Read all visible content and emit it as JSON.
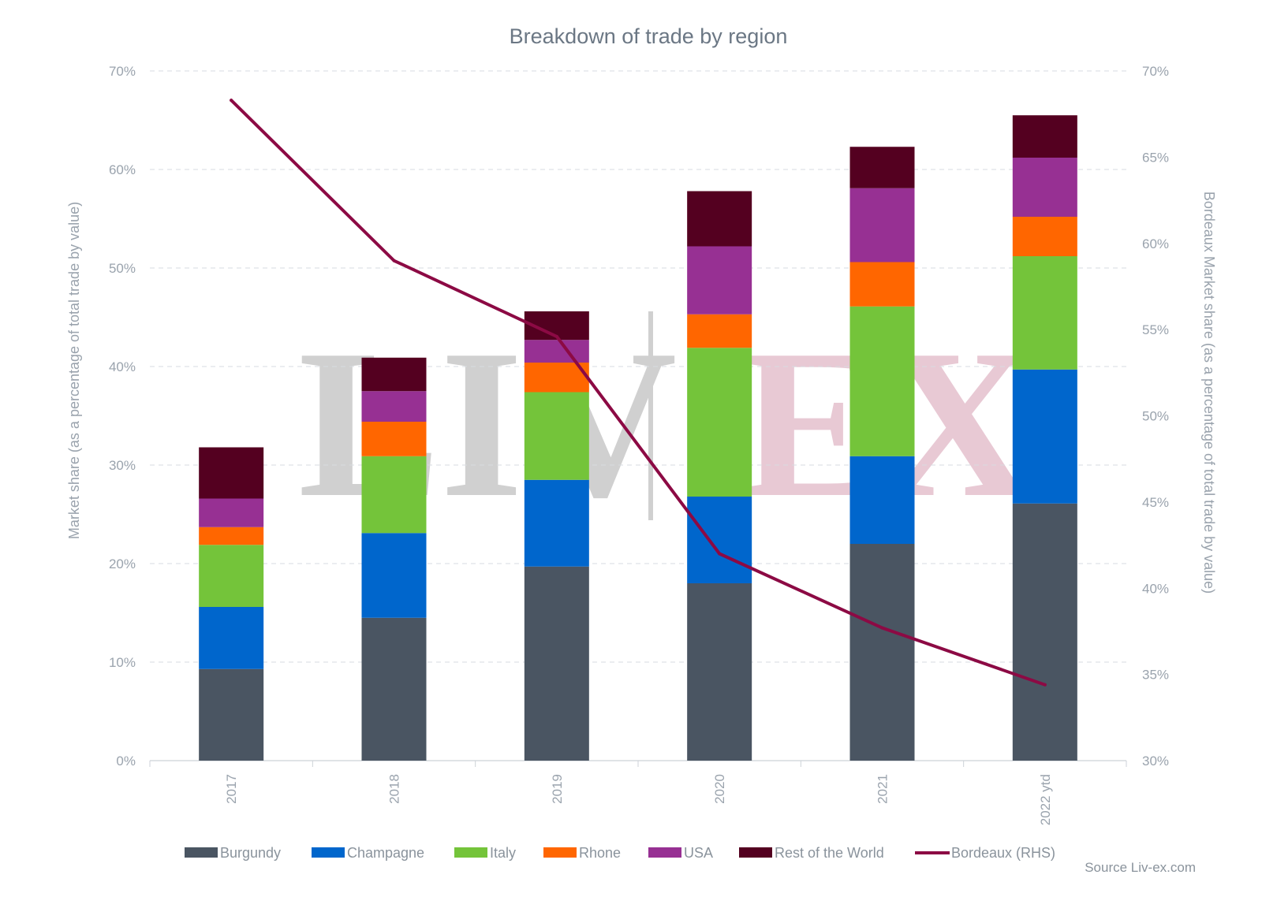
{
  "chart_data": {
    "type": "bar",
    "stacked": true,
    "title": "Breakdown of trade by region",
    "categories": [
      "2017",
      "2018",
      "2019",
      "2020",
      "2021",
      "2022 ytd"
    ],
    "ylabel": "Market share (as a percentage of total trade by value)",
    "y2label": "Bordeaux Market share (as a percentage of total trade by value)",
    "ylim": [
      0,
      70
    ],
    "y2lim": [
      30,
      70
    ],
    "yticks": [
      "0%",
      "10%",
      "20%",
      "30%",
      "40%",
      "50%",
      "60%",
      "70%"
    ],
    "y2ticks": [
      "30%",
      "35%",
      "40%",
      "45%",
      "50%",
      "55%",
      "60%",
      "65%",
      "70%"
    ],
    "y2tick_values": [
      30,
      35,
      40,
      45,
      50,
      55,
      60,
      65,
      70
    ],
    "grid": true,
    "legend_position": "bottom",
    "series": [
      {
        "name": "Burgundy",
        "color": "#4a5562",
        "values": [
          9.3,
          14.5,
          19.7,
          18.0,
          22.0,
          26.1
        ]
      },
      {
        "name": "Champagne",
        "color": "#0066cc",
        "values": [
          6.3,
          8.6,
          8.8,
          8.8,
          8.9,
          13.6
        ]
      },
      {
        "name": "Italy",
        "color": "#74c43a",
        "values": [
          6.3,
          7.8,
          8.9,
          15.1,
          15.2,
          11.5
        ]
      },
      {
        "name": "Rhone",
        "color": "#ff6600",
        "values": [
          1.8,
          3.5,
          3.0,
          3.4,
          4.5,
          4.0
        ]
      },
      {
        "name": "USA",
        "color": "#973093",
        "values": [
          2.9,
          3.1,
          2.3,
          6.9,
          7.5,
          6.0
        ]
      },
      {
        "name": "Rest of the World",
        "color": "#540020",
        "values": [
          5.2,
          3.4,
          2.9,
          5.6,
          4.2,
          4.3
        ]
      }
    ],
    "line_series": {
      "name": "Bordeaux (RHS)",
      "color": "#8c0a44",
      "axis": "right",
      "values": [
        68.3,
        59.0,
        54.6,
        42.0,
        37.7,
        34.4
      ]
    },
    "watermark": {
      "left": "LIV",
      "right": "EX"
    },
    "source": "Source Liv-ex.com"
  }
}
